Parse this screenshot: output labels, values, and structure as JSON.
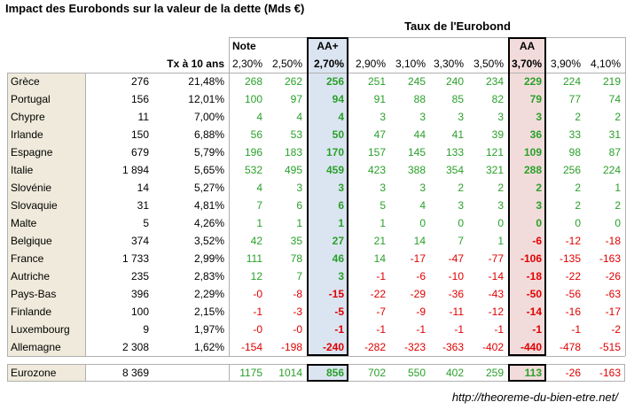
{
  "title": "Impact des Eurobonds sur la valeur de la dette (Mds €)",
  "sup_header": "Taux de l'Eurobond",
  "group_labels": {
    "note": "Note",
    "aaplus": "AA+",
    "aa": "AA"
  },
  "tx_label": "Tx à 10 ans",
  "rate_headers": [
    "2,30%",
    "2,50%",
    "2,70%",
    "2,90%",
    "3,10%",
    "3,30%",
    "3,50%",
    "3,70%",
    "3,90%",
    "4,10%"
  ],
  "rows": [
    {
      "country": "Grèce",
      "debt": "276",
      "tx": "21,48%",
      "values": [
        "268",
        "262",
        "256",
        "251",
        "245",
        "240",
        "234",
        "229",
        "224",
        "219"
      ]
    },
    {
      "country": "Portugal",
      "debt": "156",
      "tx": "12,01%",
      "values": [
        "100",
        "97",
        "94",
        "91",
        "88",
        "85",
        "82",
        "79",
        "77",
        "74"
      ]
    },
    {
      "country": "Chypre",
      "debt": "11",
      "tx": "7,00%",
      "values": [
        "4",
        "4",
        "4",
        "3",
        "3",
        "3",
        "3",
        "3",
        "2",
        "2"
      ]
    },
    {
      "country": "Irlande",
      "debt": "150",
      "tx": "6,88%",
      "values": [
        "56",
        "53",
        "50",
        "47",
        "44",
        "41",
        "39",
        "36",
        "33",
        "31"
      ]
    },
    {
      "country": "Espagne",
      "debt": "679",
      "tx": "5,79%",
      "values": [
        "196",
        "183",
        "170",
        "157",
        "145",
        "133",
        "121",
        "109",
        "98",
        "87"
      ]
    },
    {
      "country": "Italie",
      "debt": "1 894",
      "tx": "5,65%",
      "values": [
        "532",
        "495",
        "459",
        "423",
        "388",
        "354",
        "321",
        "288",
        "256",
        "224"
      ]
    },
    {
      "country": "Slovénie",
      "debt": "14",
      "tx": "5,27%",
      "values": [
        "4",
        "3",
        "3",
        "3",
        "3",
        "2",
        "2",
        "2",
        "2",
        "1"
      ]
    },
    {
      "country": "Slovaquie",
      "debt": "31",
      "tx": "4,81%",
      "values": [
        "7",
        "6",
        "6",
        "5",
        "4",
        "3",
        "3",
        "3",
        "2",
        "2"
      ]
    },
    {
      "country": "Malte",
      "debt": "5",
      "tx": "4,26%",
      "values": [
        "1",
        "1",
        "1",
        "1",
        "0",
        "0",
        "0",
        "0",
        "0",
        "0"
      ]
    },
    {
      "country": "Belgique",
      "debt": "374",
      "tx": "3,52%",
      "values": [
        "42",
        "35",
        "27",
        "21",
        "14",
        "7",
        "1",
        "-6",
        "-12",
        "-18"
      ]
    },
    {
      "country": "France",
      "debt": "1 733",
      "tx": "2,99%",
      "values": [
        "111",
        "78",
        "46",
        "14",
        "-17",
        "-47",
        "-77",
        "-106",
        "-135",
        "-163"
      ]
    },
    {
      "country": "Autriche",
      "debt": "235",
      "tx": "2,83%",
      "values": [
        "12",
        "7",
        "3",
        "-1",
        "-6",
        "-10",
        "-14",
        "-18",
        "-22",
        "-26"
      ]
    },
    {
      "country": "Pays-Bas",
      "debt": "396",
      "tx": "2,29%",
      "values": [
        "-0",
        "-8",
        "-15",
        "-22",
        "-29",
        "-36",
        "-43",
        "-50",
        "-56",
        "-63"
      ]
    },
    {
      "country": "Finlande",
      "debt": "100",
      "tx": "2,15%",
      "values": [
        "-1",
        "-3",
        "-5",
        "-7",
        "-9",
        "-11",
        "-12",
        "-14",
        "-16",
        "-17"
      ]
    },
    {
      "country": "Luxembourg",
      "debt": "9",
      "tx": "1,97%",
      "values": [
        "-0",
        "-0",
        "-1",
        "-1",
        "-1",
        "-1",
        "-1",
        "-1",
        "-1",
        "-2"
      ]
    },
    {
      "country": "Allemagne",
      "debt": "2 308",
      "tx": "1,62%",
      "values": [
        "-154",
        "-198",
        "-240",
        "-282",
        "-323",
        "-363",
        "-402",
        "-440",
        "-478",
        "-515"
      ]
    }
  ],
  "total": {
    "country": "Eurozone",
    "debt": "8 369",
    "tx": "",
    "values": [
      "1175",
      "1014",
      "856",
      "702",
      "550",
      "402",
      "259",
      "113",
      "-26",
      "-163"
    ]
  },
  "url": "http://theoreme-du-bien-etre.net/",
  "colors": {
    "positive": "#2aa02a",
    "negative": "#e00000",
    "beige": "#efeadb",
    "aaplus_fill": "#dbe5f1",
    "aa_fill": "#f2dcdb"
  }
}
